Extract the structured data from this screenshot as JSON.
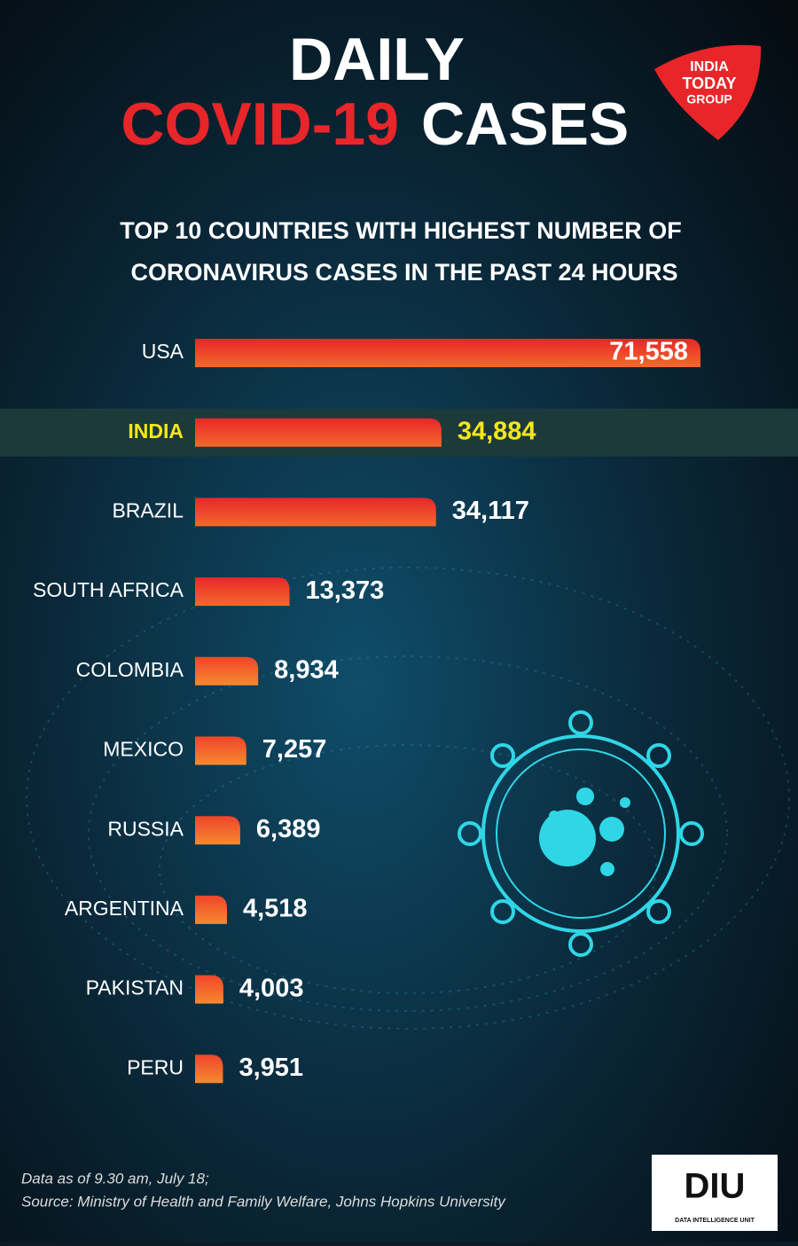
{
  "chart_data": {
    "type": "bar",
    "orientation": "horizontal",
    "title": {
      "top": "DAILY",
      "red": "COVID-19",
      "white": "CASES"
    },
    "subtitle": [
      "TOP 10 COUNTRIES WITH HIGHEST NUMBER OF",
      "CORONAVIRUS CASES IN THE PAST 24 HOURS"
    ],
    "categories": [
      "USA",
      "INDIA",
      "BRAZIL",
      "SOUTH AFRICA",
      "COLOMBIA",
      "MEXICO",
      "RUSSIA",
      "ARGENTINA",
      "PAKISTAN",
      "PERU"
    ],
    "values": [
      71558,
      34884,
      34117,
      13373,
      8934,
      7257,
      6389,
      4518,
      4003,
      3951
    ],
    "value_labels": [
      "71,558",
      "34,884",
      "34,117",
      "13,373",
      "8,934",
      "7,257",
      "6,389",
      "4,518",
      "4,003",
      "3,951"
    ],
    "color": "#e8262a",
    "highlight_index": 1,
    "highlight_color": "#f5e71a",
    "footnote": [
      "Data as of 9.30 am, July 18;",
      "Source: Ministry of Health and Family Welfare, Johns Hopkins University"
    ],
    "logo": {
      "line1": "INDIA",
      "line2": "TODAY",
      "line3": "GROUP"
    },
    "badge": {
      "name": "DIU",
      "sub": "DATA INTELLIGENCE UNIT"
    }
  }
}
